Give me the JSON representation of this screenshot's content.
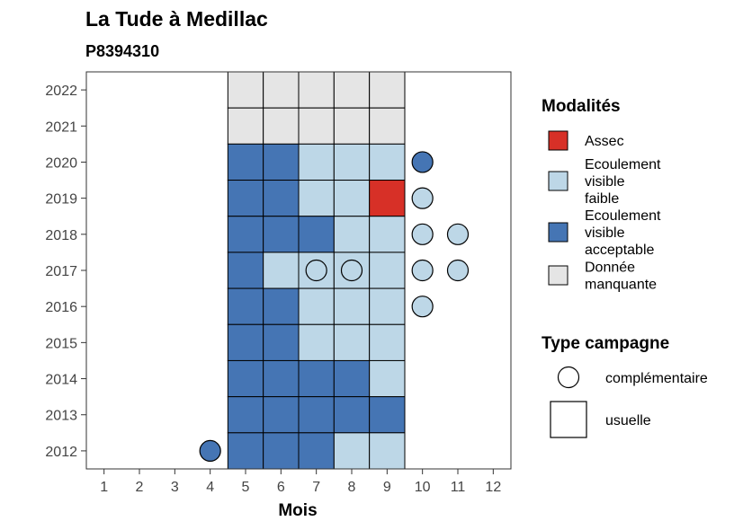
{
  "chart_data": {
    "type": "heatmap",
    "title": "La Tude à Medillac",
    "subtitle": "P8394310",
    "xlabel": "Mois",
    "ylabel": "",
    "x_ticks": [
      "1",
      "2",
      "3",
      "4",
      "5",
      "6",
      "7",
      "8",
      "9",
      "10",
      "11",
      "12"
    ],
    "y_ticks": [
      "2012",
      "2013",
      "2014",
      "2015",
      "2016",
      "2017",
      "2018",
      "2019",
      "2020",
      "2021",
      "2022"
    ],
    "grid": false,
    "legend_placement": "right",
    "colors": {
      "assec": "#d73027",
      "faible": "#bdd7e7",
      "acceptable": "#4575b4",
      "manquante": "#e5e5e5"
    },
    "legend_modalites": {
      "title": "Modalités",
      "items": [
        {
          "key": "assec",
          "lines": [
            "Assec"
          ]
        },
        {
          "key": "faible",
          "lines": [
            "Ecoulement",
            "visible",
            "faible"
          ]
        },
        {
          "key": "acceptable",
          "lines": [
            "Ecoulement",
            "visible",
            "acceptable"
          ]
        },
        {
          "key": "manquante",
          "lines": [
            "Donnée",
            "manquante"
          ]
        }
      ]
    },
    "legend_campagne": {
      "title": "Type campagne",
      "items": [
        {
          "shape": "circle",
          "label": "complémentaire"
        },
        {
          "shape": "square",
          "label": "usuelle"
        }
      ]
    },
    "cells": [
      {
        "year": 2022,
        "month": 5,
        "status": "manquante",
        "type": "usuelle"
      },
      {
        "year": 2022,
        "month": 6,
        "status": "manquante",
        "type": "usuelle"
      },
      {
        "year": 2022,
        "month": 7,
        "status": "manquante",
        "type": "usuelle"
      },
      {
        "year": 2022,
        "month": 8,
        "status": "manquante",
        "type": "usuelle"
      },
      {
        "year": 2022,
        "month": 9,
        "status": "manquante",
        "type": "usuelle"
      },
      {
        "year": 2021,
        "month": 5,
        "status": "manquante",
        "type": "usuelle"
      },
      {
        "year": 2021,
        "month": 6,
        "status": "manquante",
        "type": "usuelle"
      },
      {
        "year": 2021,
        "month": 7,
        "status": "manquante",
        "type": "usuelle"
      },
      {
        "year": 2021,
        "month": 8,
        "status": "manquante",
        "type": "usuelle"
      },
      {
        "year": 2021,
        "month": 9,
        "status": "manquante",
        "type": "usuelle"
      },
      {
        "year": 2020,
        "month": 5,
        "status": "acceptable",
        "type": "usuelle"
      },
      {
        "year": 2020,
        "month": 6,
        "status": "acceptable",
        "type": "usuelle"
      },
      {
        "year": 2020,
        "month": 7,
        "status": "faible",
        "type": "usuelle"
      },
      {
        "year": 2020,
        "month": 8,
        "status": "faible",
        "type": "usuelle"
      },
      {
        "year": 2020,
        "month": 9,
        "status": "faible",
        "type": "usuelle"
      },
      {
        "year": 2020,
        "month": 10,
        "status": "acceptable",
        "type": "complementaire"
      },
      {
        "year": 2019,
        "month": 5,
        "status": "acceptable",
        "type": "usuelle"
      },
      {
        "year": 2019,
        "month": 6,
        "status": "acceptable",
        "type": "usuelle"
      },
      {
        "year": 2019,
        "month": 7,
        "status": "faible",
        "type": "usuelle"
      },
      {
        "year": 2019,
        "month": 8,
        "status": "faible",
        "type": "usuelle"
      },
      {
        "year": 2019,
        "month": 9,
        "status": "assec",
        "type": "usuelle"
      },
      {
        "year": 2019,
        "month": 10,
        "status": "faible",
        "type": "complementaire"
      },
      {
        "year": 2018,
        "month": 5,
        "status": "acceptable",
        "type": "usuelle"
      },
      {
        "year": 2018,
        "month": 6,
        "status": "acceptable",
        "type": "usuelle"
      },
      {
        "year": 2018,
        "month": 7,
        "status": "acceptable",
        "type": "usuelle"
      },
      {
        "year": 2018,
        "month": 8,
        "status": "faible",
        "type": "usuelle"
      },
      {
        "year": 2018,
        "month": 9,
        "status": "faible",
        "type": "usuelle"
      },
      {
        "year": 2018,
        "month": 10,
        "status": "faible",
        "type": "complementaire"
      },
      {
        "year": 2018,
        "month": 11,
        "status": "faible",
        "type": "complementaire"
      },
      {
        "year": 2017,
        "month": 5,
        "status": "acceptable",
        "type": "usuelle"
      },
      {
        "year": 2017,
        "month": 6,
        "status": "faible",
        "type": "usuelle"
      },
      {
        "year": 2017,
        "month": 7,
        "status": "faible",
        "type": "usuelle"
      },
      {
        "year": 2017,
        "month": 7,
        "status": "faible",
        "type": "complementaire"
      },
      {
        "year": 2017,
        "month": 8,
        "status": "faible",
        "type": "usuelle"
      },
      {
        "year": 2017,
        "month": 8,
        "status": "faible",
        "type": "complementaire"
      },
      {
        "year": 2017,
        "month": 9,
        "status": "faible",
        "type": "usuelle"
      },
      {
        "year": 2017,
        "month": 10,
        "status": "faible",
        "type": "complementaire"
      },
      {
        "year": 2017,
        "month": 11,
        "status": "faible",
        "type": "complementaire"
      },
      {
        "year": 2016,
        "month": 5,
        "status": "acceptable",
        "type": "usuelle"
      },
      {
        "year": 2016,
        "month": 6,
        "status": "acceptable",
        "type": "usuelle"
      },
      {
        "year": 2016,
        "month": 7,
        "status": "faible",
        "type": "usuelle"
      },
      {
        "year": 2016,
        "month": 8,
        "status": "faible",
        "type": "usuelle"
      },
      {
        "year": 2016,
        "month": 9,
        "status": "faible",
        "type": "usuelle"
      },
      {
        "year": 2016,
        "month": 10,
        "status": "faible",
        "type": "complementaire"
      },
      {
        "year": 2015,
        "month": 5,
        "status": "acceptable",
        "type": "usuelle"
      },
      {
        "year": 2015,
        "month": 6,
        "status": "acceptable",
        "type": "usuelle"
      },
      {
        "year": 2015,
        "month": 7,
        "status": "faible",
        "type": "usuelle"
      },
      {
        "year": 2015,
        "month": 8,
        "status": "faible",
        "type": "usuelle"
      },
      {
        "year": 2015,
        "month": 9,
        "status": "faible",
        "type": "usuelle"
      },
      {
        "year": 2014,
        "month": 5,
        "status": "acceptable",
        "type": "usuelle"
      },
      {
        "year": 2014,
        "month": 6,
        "status": "acceptable",
        "type": "usuelle"
      },
      {
        "year": 2014,
        "month": 7,
        "status": "acceptable",
        "type": "usuelle"
      },
      {
        "year": 2014,
        "month": 8,
        "status": "acceptable",
        "type": "usuelle"
      },
      {
        "year": 2014,
        "month": 9,
        "status": "faible",
        "type": "usuelle"
      },
      {
        "year": 2013,
        "month": 5,
        "status": "acceptable",
        "type": "usuelle"
      },
      {
        "year": 2013,
        "month": 6,
        "status": "acceptable",
        "type": "usuelle"
      },
      {
        "year": 2013,
        "month": 7,
        "status": "acceptable",
        "type": "usuelle"
      },
      {
        "year": 2013,
        "month": 8,
        "status": "acceptable",
        "type": "usuelle"
      },
      {
        "year": 2013,
        "month": 9,
        "status": "acceptable",
        "type": "usuelle"
      },
      {
        "year": 2012,
        "month": 4,
        "status": "acceptable",
        "type": "complementaire"
      },
      {
        "year": 2012,
        "month": 5,
        "status": "acceptable",
        "type": "usuelle"
      },
      {
        "year": 2012,
        "month": 6,
        "status": "acceptable",
        "type": "usuelle"
      },
      {
        "year": 2012,
        "month": 7,
        "status": "acceptable",
        "type": "usuelle"
      },
      {
        "year": 2012,
        "month": 8,
        "status": "faible",
        "type": "usuelle"
      },
      {
        "year": 2012,
        "month": 9,
        "status": "faible",
        "type": "usuelle"
      }
    ]
  }
}
